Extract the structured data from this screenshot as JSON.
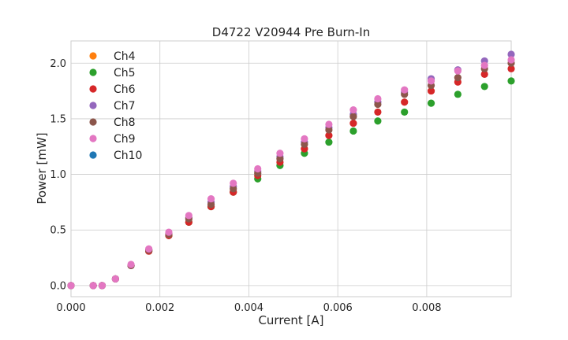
{
  "chart_data": {
    "type": "scatter",
    "title": "D4722 V20944 Pre Burn-In",
    "xlabel": "Current [A]",
    "ylabel": "Power [mW]",
    "xlim": [
      0,
      0.0099
    ],
    "ylim": [
      -0.1,
      2.2
    ],
    "x_ticks": [
      "0.000",
      "0.002",
      "0.004",
      "0.006",
      "0.008"
    ],
    "x_tick_values": [
      0,
      0.002,
      0.004,
      0.006,
      0.008
    ],
    "y_ticks": [
      "0.0",
      "0.5",
      "1.0",
      "1.5",
      "2.0"
    ],
    "y_tick_values": [
      0,
      0.5,
      1.0,
      1.5,
      2.0
    ],
    "grid": true,
    "legend_position": "top-left",
    "x": [
      0.0,
      0.0005,
      0.0007,
      0.001,
      0.00135,
      0.00175,
      0.0022,
      0.00265,
      0.00315,
      0.00365,
      0.0042,
      0.0047,
      0.00525,
      0.0058,
      0.00635,
      0.0069,
      0.0075,
      0.0081,
      0.0087,
      0.0093,
      0.0099
    ],
    "series": [
      {
        "name": "Ch4",
        "color": "#ff7f0e",
        "values": []
      },
      {
        "name": "Ch5",
        "color": "#2ca02c",
        "values": [
          0.0,
          0.0,
          0.0,
          0.06,
          0.18,
          0.31,
          0.45,
          0.57,
          0.71,
          0.84,
          0.96,
          1.08,
          1.19,
          1.29,
          1.39,
          1.48,
          1.56,
          1.64,
          1.72,
          1.79,
          1.84
        ]
      },
      {
        "name": "Ch6",
        "color": "#d62728",
        "values": [
          0.0,
          0.0,
          0.0,
          0.06,
          0.18,
          0.31,
          0.45,
          0.57,
          0.71,
          0.84,
          0.99,
          1.11,
          1.23,
          1.35,
          1.46,
          1.56,
          1.65,
          1.75,
          1.83,
          1.9,
          1.95
        ]
      },
      {
        "name": "Ch7",
        "color": "#9467bd",
        "values": [
          0.0,
          0.0,
          0.0,
          0.06,
          0.18,
          0.32,
          0.47,
          0.61,
          0.75,
          0.89,
          1.03,
          1.16,
          1.29,
          1.42,
          1.54,
          1.65,
          1.74,
          1.86,
          1.94,
          2.02,
          2.08
        ]
      },
      {
        "name": "Ch8",
        "color": "#8c564b",
        "values": [
          0.0,
          0.0,
          0.0,
          0.06,
          0.18,
          0.32,
          0.46,
          0.6,
          0.73,
          0.87,
          1.01,
          1.14,
          1.27,
          1.4,
          1.52,
          1.63,
          1.72,
          1.8,
          1.87,
          1.95,
          2.0
        ]
      },
      {
        "name": "Ch9",
        "color": "#e377c2",
        "values": [
          0.0,
          0.0,
          0.0,
          0.06,
          0.19,
          0.33,
          0.48,
          0.63,
          0.78,
          0.92,
          1.05,
          1.19,
          1.32,
          1.45,
          1.58,
          1.68,
          1.76,
          1.84,
          1.93,
          1.98,
          2.03
        ]
      },
      {
        "name": "Ch10",
        "color": "#1f77b4",
        "values": []
      }
    ]
  }
}
